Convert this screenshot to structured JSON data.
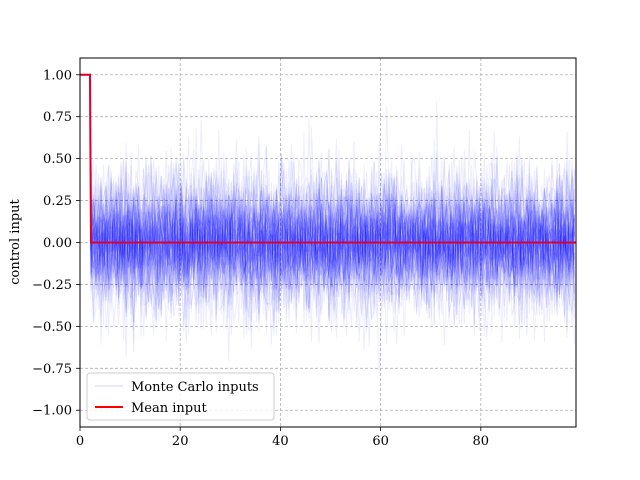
{
  "chart_data": {
    "type": "line",
    "title": "",
    "xlabel": "",
    "ylabel": "control input",
    "xlim": [
      0,
      99
    ],
    "ylim": [
      -1.1,
      1.1
    ],
    "xticks": [
      0,
      20,
      40,
      60,
      80
    ],
    "yticks": [
      -1.0,
      -0.75,
      -0.5,
      -0.25,
      0.0,
      0.25,
      0.5,
      0.75,
      1.0
    ],
    "xtick_labels": [
      "0",
      "20",
      "40",
      "60",
      "80"
    ],
    "ytick_labels": [
      "−1.00",
      "−0.75",
      "−0.50",
      "−0.25",
      "0.00",
      "0.25",
      "0.50",
      "0.75",
      "1.00"
    ],
    "grid": true,
    "legend_position": "lower-left",
    "series": [
      {
        "name": "Monte Carlo inputs",
        "color": "#0000ff",
        "style": "many faint sample trajectories: 1.0 for steps 0–2, then noise centered at 0 (spread mostly within ±0.5, extremes near ±0.9)",
        "x": [
          0,
          1,
          2,
          2.2,
          99
        ],
        "y_initial": 1.0,
        "y_center_after_step": 0.0
      },
      {
        "name": "Mean input",
        "color": "#ff0000",
        "x": [
          0,
          1,
          2,
          2.2,
          99
        ],
        "y": [
          1.0,
          1.0,
          1.0,
          0.0,
          0.0
        ]
      }
    ]
  }
}
